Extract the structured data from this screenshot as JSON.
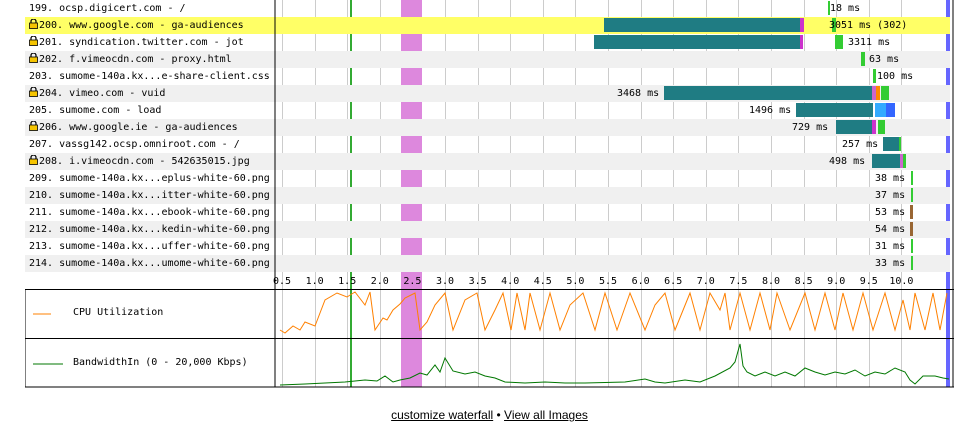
{
  "rows": [
    {
      "label": "199. ocsp.digicert.com - /",
      "lock": false,
      "timing": "18 ms"
    },
    {
      "label": "200. www.google.com - ga-audiences",
      "lock": true,
      "timing": "3051 ms (302)",
      "highlight": true
    },
    {
      "label": "201. syndication.twitter.com - jot",
      "lock": true,
      "timing": "3311 ms"
    },
    {
      "label": "202. f.vimeocdn.com - proxy.html",
      "lock": true,
      "timing": "63 ms"
    },
    {
      "label": "203. sumome-140a.kx...e-share-client.css",
      "lock": false,
      "timing": "100 ms"
    },
    {
      "label": "204. vimeo.com - vuid",
      "lock": true,
      "timing": "3468 ms"
    },
    {
      "label": "205. sumome.com - load",
      "lock": false,
      "timing": "1496 ms"
    },
    {
      "label": "206. www.google.ie - ga-audiences",
      "lock": true,
      "timing": "729 ms"
    },
    {
      "label": "207. vassg142.ocsp.omniroot.com - /",
      "lock": false,
      "timing": "257 ms"
    },
    {
      "label": "208. i.vimeocdn.com - 542635015.jpg",
      "lock": true,
      "timing": "498 ms"
    },
    {
      "label": "209. sumome-140a.kx...eplus-white-60.png",
      "lock": false,
      "timing": "38 ms"
    },
    {
      "label": "210. sumome-140a.kx...itter-white-60.png",
      "lock": false,
      "timing": "37 ms"
    },
    {
      "label": "211. sumome-140a.kx...ebook-white-60.png",
      "lock": false,
      "timing": "53 ms"
    },
    {
      "label": "212. sumome-140a.kx...kedin-white-60.png",
      "lock": false,
      "timing": "54 ms"
    },
    {
      "label": "213. sumome-140a.kx...uffer-white-60.png",
      "lock": false,
      "timing": "31 ms"
    },
    {
      "label": "214. sumome-140a.kx...umome-white-60.png",
      "lock": false,
      "timing": "33 ms"
    }
  ],
  "axis": {
    "ticks": [
      "0.5",
      "1.0",
      "1.5",
      "2.0",
      "2.5",
      "3.0",
      "3.5",
      "4.0",
      "4.5",
      "5.0",
      "5.5",
      "6.0",
      "6.5",
      "7.0",
      "7.5",
      "8.0",
      "8.5",
      "9.0",
      "9.5",
      "10.0"
    ]
  },
  "cpu": {
    "label": "CPU Utilization"
  },
  "bandwidth": {
    "label": "BandwidthIn (0 - 20,000 Kbps)"
  },
  "footer": {
    "customize": "customize waterfall",
    "separator": " • ",
    "view_all": "View all Images"
  },
  "colors": {
    "highlight": "#ffff66",
    "ttfb": "#1f7c83",
    "download": "#33cc33",
    "ssl": "#cc33cc",
    "marker": "#dd88dd",
    "cpu": "#ff8000",
    "bandwidth": "#007700"
  }
}
